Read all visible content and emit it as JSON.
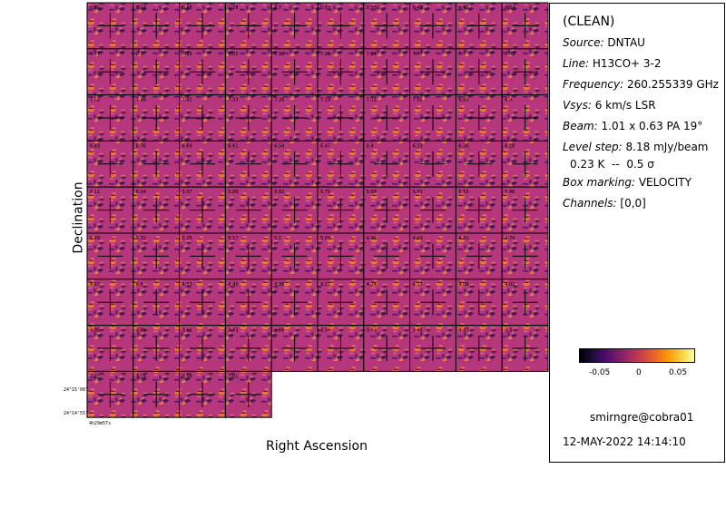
{
  "axes": {
    "ylabel": "Declination",
    "xlabel": "Right Ascension",
    "dec_ticks": [
      "24°15'00\"",
      "24°14'55\""
    ],
    "ra_tick": "4h29m57s"
  },
  "channels": {
    "grid": {
      "rows": 9,
      "cols": 10,
      "count": 84
    },
    "velocity_labels": [
      "0.86",
      "0.92",
      "0.88",
      "0.78",
      "0.7",
      "0.63",
      "0.55",
      "0.48",
      "0.42",
      "0.34",
      "0.27",
      "0.2",
      "0.13",
      "0.05",
      "7.98",
      "7.91",
      "7.84",
      "7.77",
      "7.7",
      "7.62",
      "7.55",
      "7.48",
      "7.41",
      "7.33",
      "7.26",
      "7.19",
      "7.12",
      "7.05",
      "6.98",
      "6.9",
      "6.83",
      "6.76",
      "6.69",
      "6.61",
      "6.54",
      "6.47",
      "6.4",
      "6.33",
      "6.26",
      "6.18",
      "6.11",
      "6.04",
      "5.97",
      "5.89",
      "5.82",
      "5.75",
      "5.68",
      "5.61",
      "5.53",
      "5.46",
      "5.39",
      "5.32",
      "5.25",
      "5.17",
      "5.1",
      "5.03",
      "4.96",
      "4.89",
      "4.81",
      "4.74",
      "4.67",
      "4.6",
      "4.53",
      "4.45",
      "4.38",
      "4.31",
      "4.24",
      "4.17",
      "4.09",
      "4.02",
      "3.95",
      "3.88",
      "3.81",
      "3.73",
      "3.66",
      "3.59",
      "3.52",
      "3.45",
      "3.37",
      "3.3",
      "3.23",
      "3.16",
      "3.09",
      "3.01"
    ]
  },
  "info": {
    "title": "(CLEAN)",
    "source": {
      "key": "Source:",
      "value": "DNTAU"
    },
    "line": {
      "key": "Line:",
      "value": "H13CO+ 3-2"
    },
    "frequency": {
      "key": "Frequency:",
      "value": "260.255339 GHz"
    },
    "vsys": {
      "key": "Vsys:",
      "value": "6 km/s LSR"
    },
    "beam": {
      "key": "Beam:",
      "value": "1.01 x 0.63 PA 19°"
    },
    "level": {
      "key": "Level step:",
      "value": "8.18 mJy/beam"
    },
    "level2": "0.23 K  --  0.5 σ",
    "box": {
      "key": "Box marking:",
      "value": "VELOCITY"
    },
    "chan": {
      "key": "Channels:",
      "value": "[0,0]"
    }
  },
  "colorbar": {
    "colormap": "inferno",
    "tick_labels": [
      "-0.05",
      "0",
      "0.05"
    ],
    "ticks": [
      -0.05,
      0,
      0.05
    ],
    "range": [
      -0.075,
      0.075
    ]
  },
  "footer": {
    "user": "smirngre@cobra01",
    "date": "12-MAY-2022 14:14:10"
  },
  "colors": {
    "dark": "#3a1060",
    "mid": "#b5367a",
    "bright": "#f08a2a"
  }
}
